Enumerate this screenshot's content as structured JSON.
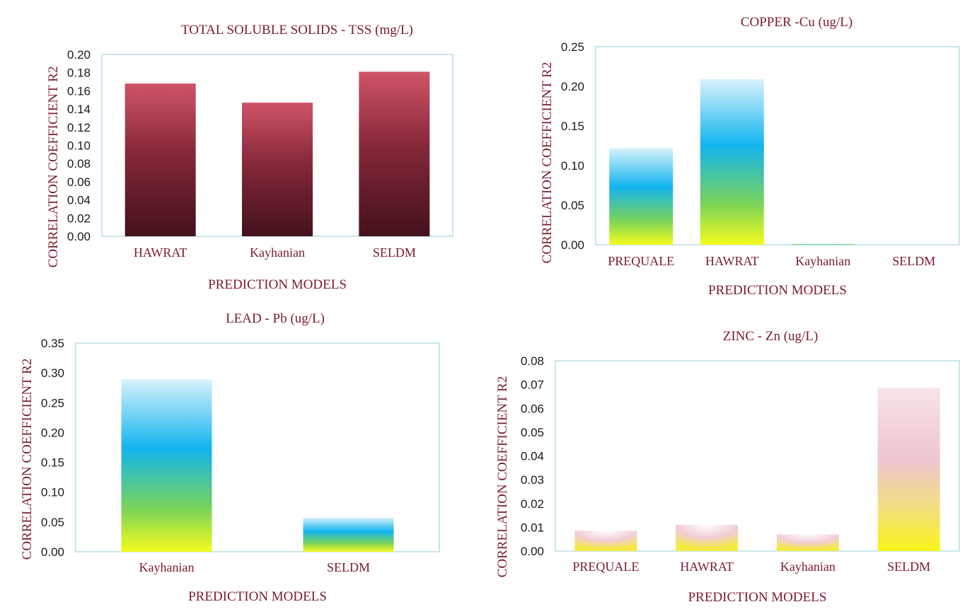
{
  "colors": {
    "title_text": "#7a1c2c",
    "axis_text": "#1a1a1a",
    "plot_frame": "#b8dde3"
  },
  "chart_data": [
    {
      "type": "bar",
      "title": "TOTAL SOLUBLE SOLIDS - TSS (mg/L)",
      "xlabel": "PREDICTION MODELS",
      "ylabel": "CORRELATION COEFFICIENT R2",
      "categories": [
        "HAWRAT",
        "Kayhanian",
        "SELDM"
      ],
      "values": [
        0.168,
        0.147,
        0.181
      ],
      "ylim": [
        0,
        0.2
      ],
      "yticks": [
        "0.00",
        "0.02",
        "0.04",
        "0.06",
        "0.08",
        "0.10",
        "0.12",
        "0.14",
        "0.16",
        "0.18",
        "0.20"
      ],
      "fill": "maroon-gradient",
      "grid": false
    },
    {
      "type": "bar",
      "title": "COPPER -Cu (ug/L)",
      "xlabel": "PREDICTION MODELS",
      "ylabel": "CORRELATION COEFFICIENT R2",
      "categories": [
        "PREQUALE",
        "HAWRAT",
        "Kayhanian",
        "SELDM"
      ],
      "values": [
        0.122,
        0.209,
        0.001,
        0
      ],
      "ylim": [
        0,
        0.25
      ],
      "yticks": [
        "0.00",
        "0.05",
        "0.10",
        "0.15",
        "0.20",
        "0.25"
      ],
      "fill": "cyan-yellow-gradient",
      "grid": false
    },
    {
      "type": "bar",
      "title": "LEAD - Pb (ug/L)",
      "xlabel": "PREDICTION MODELS",
      "ylabel": "CORRELATION COEFFICIENT R2",
      "categories": [
        "Kayhanian",
        "SELDM"
      ],
      "values": [
        0.289,
        0.057
      ],
      "ylim": [
        0,
        0.35
      ],
      "yticks": [
        "0.00",
        "0.05",
        "0.10",
        "0.15",
        "0.20",
        "0.25",
        "0.30",
        "0.35"
      ],
      "fill": "cyan-yellow-gradient",
      "grid": false
    },
    {
      "type": "bar",
      "title": "ZINC - Zn (ug/L)",
      "xlabel": "PREDICTION MODELS",
      "ylabel": "CORRELATION COEFFICIENT R2",
      "categories": [
        "PREQUALE",
        "HAWRAT",
        "Kayhanian",
        "SELDM"
      ],
      "values": [
        0.0085,
        0.011,
        0.007,
        0.0685
      ],
      "ylim": [
        0,
        0.08
      ],
      "yticks": [
        "0.00",
        "0.01",
        "0.02",
        "0.03",
        "0.04",
        "0.05",
        "0.06",
        "0.07",
        "0.08"
      ],
      "fill": "pink-yellow-gradient",
      "grid": false
    }
  ]
}
